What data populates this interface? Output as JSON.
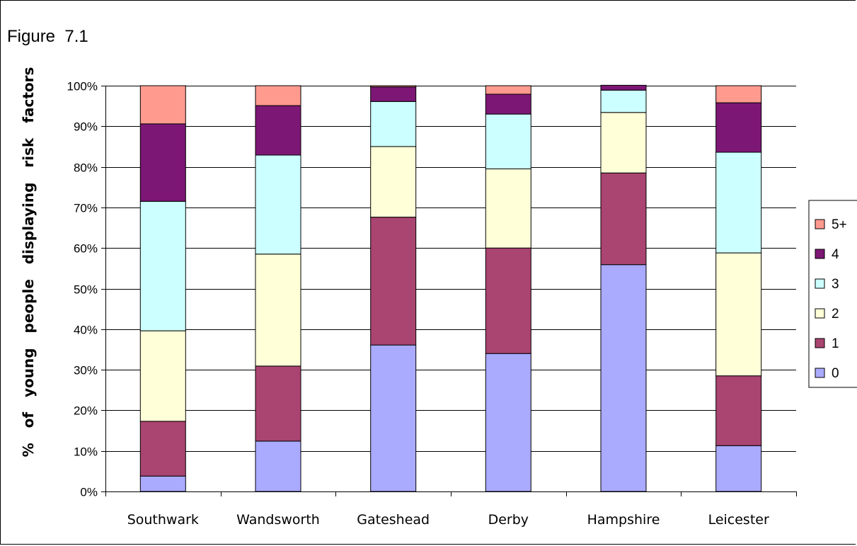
{
  "figure_label": "Figure  7.1",
  "chart_data": {
    "type": "bar",
    "stacked": true,
    "percent_stacked": true,
    "title": "",
    "xlabel": "",
    "ylabel": "% of young people displaying risk factors",
    "ylim": [
      0,
      100
    ],
    "y_ticks": [
      "0%",
      "10%",
      "20%",
      "30%",
      "40%",
      "50%",
      "60%",
      "70%",
      "80%",
      "90%",
      "100%"
    ],
    "grid": true,
    "legend_position": "right",
    "categories": [
      "Southwark",
      "Wandsworth",
      "Gateshead",
      "Derby",
      "Hampshire",
      "Leicester"
    ],
    "series": [
      {
        "name": "0",
        "color": "#aaaaff",
        "values": [
          3.8,
          12.4,
          36.1,
          34.0,
          55.9,
          11.3
        ]
      },
      {
        "name": "1",
        "color": "#aa4470",
        "values": [
          13.5,
          18.5,
          31.5,
          26.0,
          22.6,
          17.2
        ]
      },
      {
        "name": "2",
        "color": "#ffffd8",
        "values": [
          22.3,
          27.6,
          17.4,
          19.5,
          14.9,
          30.3
        ]
      },
      {
        "name": "3",
        "color": "#ccffff",
        "values": [
          31.9,
          24.4,
          11.1,
          13.5,
          5.5,
          24.8
        ]
      },
      {
        "name": "4",
        "color": "#7d1775",
        "values": [
          19.1,
          12.2,
          3.6,
          4.9,
          1.2,
          12.2
        ]
      },
      {
        "name": "5+",
        "color": "#ff9a8f",
        "values": [
          9.4,
          4.9,
          0.3,
          2.1,
          0.0,
          4.2
        ]
      }
    ]
  }
}
